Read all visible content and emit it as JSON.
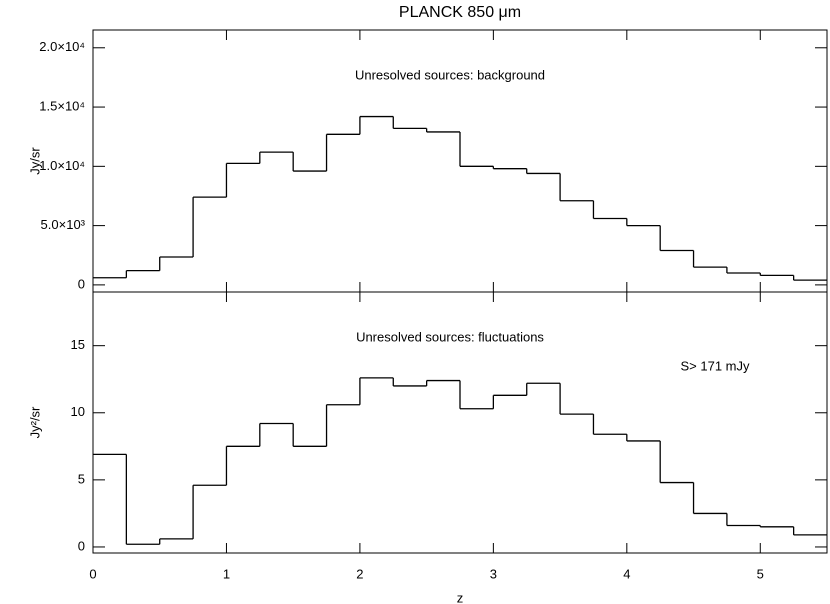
{
  "chart_data": [
    {
      "type": "histogram",
      "title": "PLANCK 850 μm",
      "ylabel": "Jy/sr",
      "annotations": [
        "Unresolved sources: background"
      ],
      "bins": [
        0,
        0.25,
        0.5,
        0.75,
        1,
        1.25,
        1.5,
        1.75,
        2,
        2.25,
        2.5,
        2.75,
        3,
        3.25,
        3.5,
        3.75,
        4,
        4.25,
        4.5,
        4.75,
        5,
        5.25,
        5.5
      ],
      "values": [
        600,
        1200,
        2350,
        7400,
        10250,
        11200,
        9600,
        12700,
        14200,
        13200,
        12900,
        10000,
        9800,
        9400,
        7100,
        5600,
        5000,
        2900,
        1500,
        1000,
        800,
        400
      ],
      "color": "#000000",
      "xlim": [
        0,
        5.5
      ],
      "xticks": [
        0,
        1,
        2,
        3,
        4,
        5
      ],
      "ylim": [
        -600,
        21500
      ],
      "yticks": [
        0,
        {
          "value": 5000,
          "label": "5.0×10³"
        },
        {
          "value": 10000,
          "label": "1.0×10⁴"
        },
        {
          "value": 15000,
          "label": "1.5×10⁴"
        },
        {
          "value": 20000,
          "label": "2.0×10⁴"
        }
      ]
    },
    {
      "type": "histogram",
      "ylabel": "Jy²/sr",
      "xlabel": "z",
      "annotations": [
        "Unresolved sources: fluctuations",
        "S> 171 mJy"
      ],
      "bins": [
        0,
        0.25,
        0.5,
        0.75,
        1,
        1.25,
        1.5,
        1.75,
        2,
        2.25,
        2.5,
        2.75,
        3,
        3.25,
        3.5,
        3.75,
        4,
        4.25,
        4.5,
        4.75,
        5,
        5.25,
        5.5
      ],
      "values": [
        6.9,
        0.2,
        0.6,
        4.6,
        7.5,
        9.2,
        7.5,
        10.6,
        12.6,
        12.0,
        12.4,
        10.3,
        11.3,
        12.2,
        9.9,
        8.4,
        7.9,
        4.8,
        2.5,
        1.6,
        1.5,
        0.9
      ],
      "color": "#000000",
      "xlim": [
        0,
        5.5
      ],
      "xticks": [
        0,
        1,
        2,
        3,
        4,
        5
      ],
      "ylim": [
        -0.45,
        19
      ],
      "yticks": [
        0,
        5,
        10,
        15
      ]
    }
  ]
}
